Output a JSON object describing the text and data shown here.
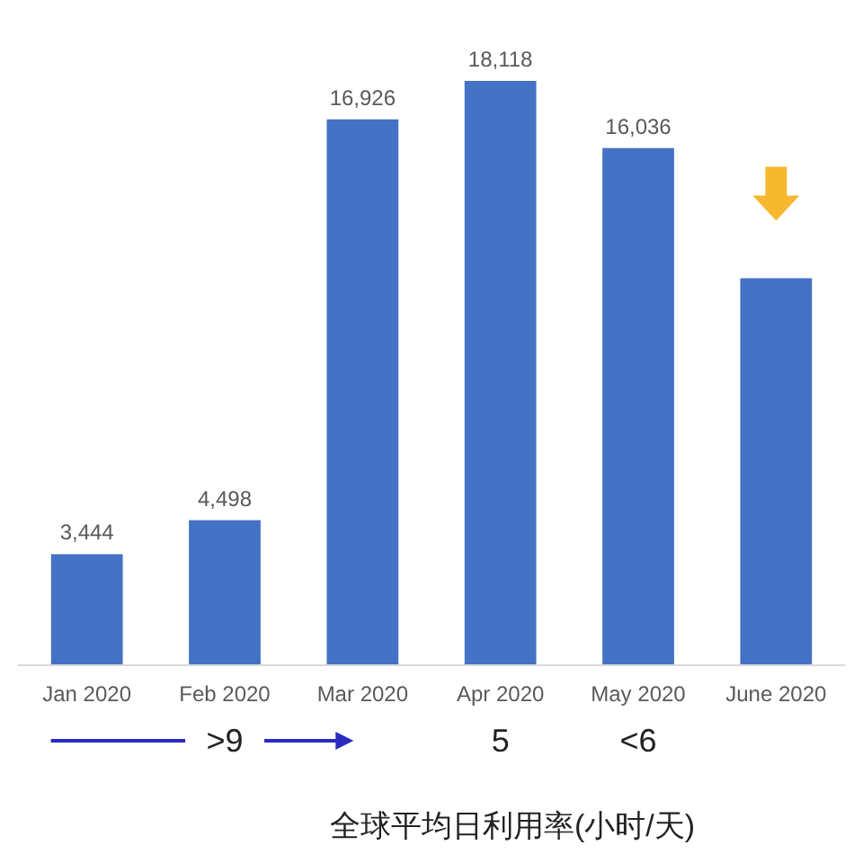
{
  "chart_data": {
    "type": "bar",
    "categories": [
      "Jan 2020",
      "Feb 2020",
      "Mar 2020",
      "Apr 2020",
      "May 2020",
      "June 2020"
    ],
    "values": [
      3444,
      4498,
      16926,
      18118,
      16036,
      12000
    ],
    "value_labels": [
      "3,444",
      "4,498",
      "16,926",
      "18,118",
      "16,036",
      null
    ],
    "color": "#4472c4",
    "annotations": [
      ">9",
      "5",
      "<6",
      "全球平均日利用率(小时/天)"
    ]
  }
}
